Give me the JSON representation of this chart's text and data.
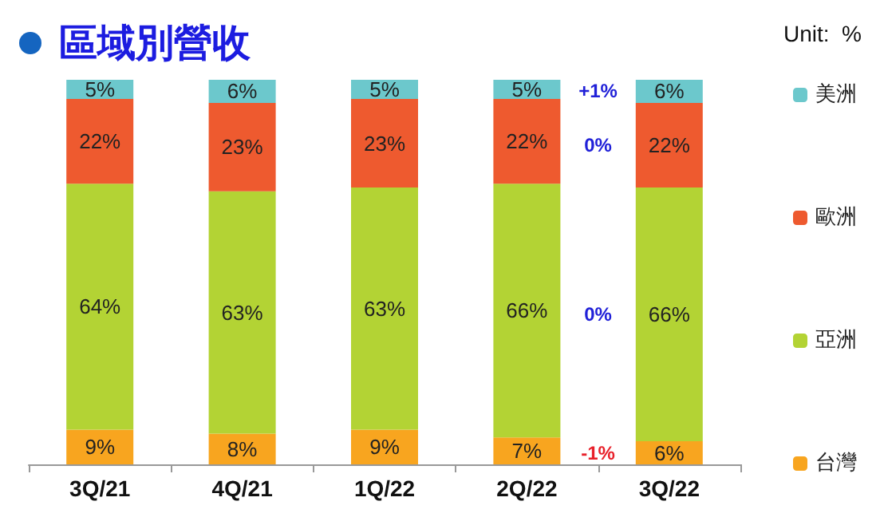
{
  "chart_data": {
    "type": "bar",
    "stacked": true,
    "title": "區域別營收",
    "categories": [
      "3Q/21",
      "4Q/21",
      "1Q/22",
      "2Q/22",
      "3Q/22"
    ],
    "series": [
      {
        "name": "台灣",
        "color": "#f8a51f",
        "values": [
          9,
          8,
          9,
          7,
          6
        ],
        "value_labels": [
          "9%",
          "8%",
          "9%",
          "7%",
          "6%"
        ]
      },
      {
        "name": "亞洲",
        "color": "#b3d334",
        "values": [
          64,
          63,
          63,
          66,
          66
        ],
        "value_labels": [
          "64%",
          "63%",
          "63%",
          "66%",
          "66%"
        ]
      },
      {
        "name": "歐洲",
        "color": "#ee5a2f",
        "values": [
          22,
          23,
          23,
          22,
          22
        ],
        "value_labels": [
          "22%",
          "23%",
          "23%",
          "22%",
          "22%"
        ]
      },
      {
        "name": "美洲",
        "color": "#6cc8cc",
        "values": [
          5,
          6,
          5,
          5,
          6
        ],
        "value_labels": [
          "5%",
          "6%",
          "5%",
          "5%",
          "6%"
        ]
      }
    ],
    "legend": "right",
    "annotations": [
      "Unit:  %",
      "+1%",
      "0%",
      "0%",
      "-1%"
    ]
  }
}
